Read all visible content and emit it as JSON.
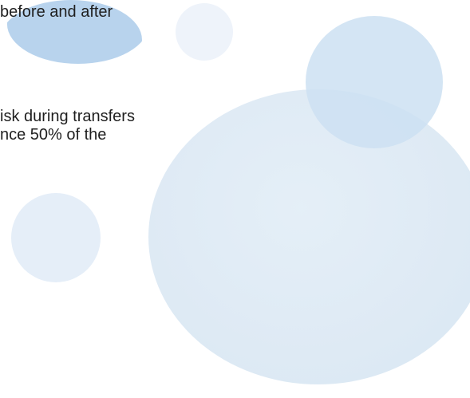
{
  "text": {
    "line_1": "before and after",
    "line_2": "isk during transfers",
    "line_3": "nce 50% of the"
  },
  "colors": {
    "text": "#1f1f1f",
    "circle_light": "#e3eef7",
    "circle_accent": "#7eaede"
  }
}
